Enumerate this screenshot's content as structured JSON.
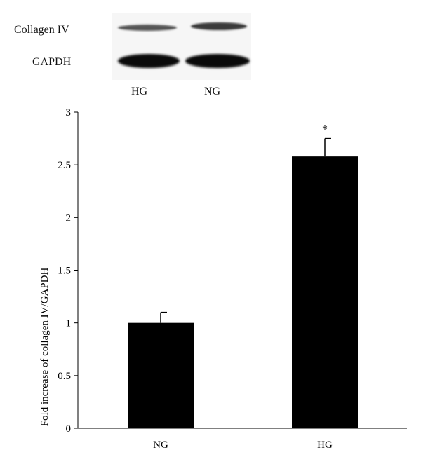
{
  "blot": {
    "rows": [
      "Collagen IV",
      "GAPDH"
    ],
    "lanes": [
      "HG",
      "NG"
    ]
  },
  "chart_data": {
    "type": "bar",
    "categories": [
      "NG",
      "HG"
    ],
    "values": [
      1.0,
      2.58
    ],
    "error": [
      0.1,
      0.17
    ],
    "annotations": [
      "",
      "*"
    ],
    "title": "",
    "xlabel": "",
    "ylabel": "Fold increase of collagen IV/GAPDH",
    "ylim": [
      0,
      3
    ],
    "yticks": [
      "0",
      "0.5",
      "1",
      "1.5",
      "2",
      "2.5",
      "3"
    ],
    "grid": false,
    "bar_color": "#000000"
  }
}
